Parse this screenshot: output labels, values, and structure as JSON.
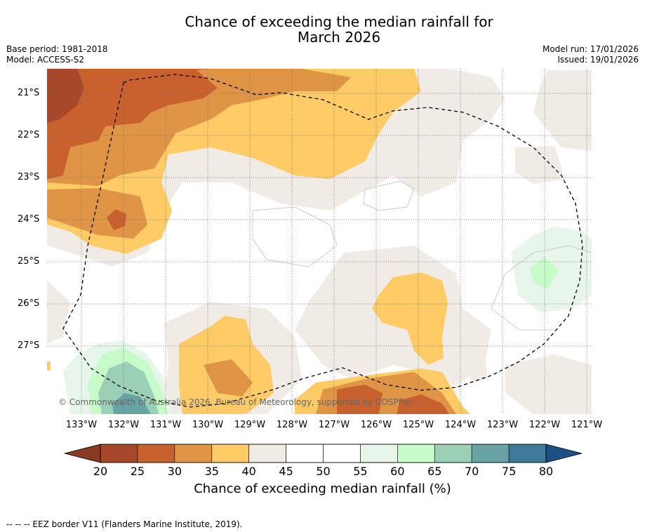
{
  "title_line1": "Chance of exceeding the median rainfall for",
  "title_line2": "March 2026",
  "meta_left": {
    "base_period": "Base period: 1981-2018",
    "model": "Model: ACCESS-S2"
  },
  "meta_right": {
    "model_run": "Model run: 17/01/2026",
    "issued": "Issued: 19/01/2026"
  },
  "map": {
    "lat_labels": [
      "21°S",
      "22°S",
      "23°S",
      "24°S",
      "25°S",
      "26°S",
      "27°S"
    ],
    "lon_labels": [
      "133°W",
      "132°W",
      "131°W",
      "130°W",
      "129°W",
      "128°W",
      "127°W",
      "126°W",
      "125°W",
      "124°W",
      "123°W",
      "122°W",
      "121°W"
    ],
    "copyright": "© Commonwealth of Australia 2026, Bureau of Meteorology, supported by COSPPac"
  },
  "colorbar": {
    "ticks": [
      "20",
      "25",
      "30",
      "35",
      "40",
      "45",
      "50",
      "55",
      "60",
      "65",
      "70",
      "75",
      "80"
    ],
    "colors": [
      "#a8482a",
      "#c9612f",
      "#df9446",
      "#fecb66",
      "#f0ebe5",
      "#ffffff",
      "#ffffff",
      "#e8f5ea",
      "#c8fbca",
      "#9bcfb6",
      "#6aa3a3",
      "#3e7b9b"
    ],
    "under_color": "#8a3a22",
    "over_color": "#1c5087",
    "label": "Chance of exceeding median rainfall (%)"
  },
  "legend_text": "--  --  -- EEZ border V11 (Flanders Marine Institute, 2019)."
}
